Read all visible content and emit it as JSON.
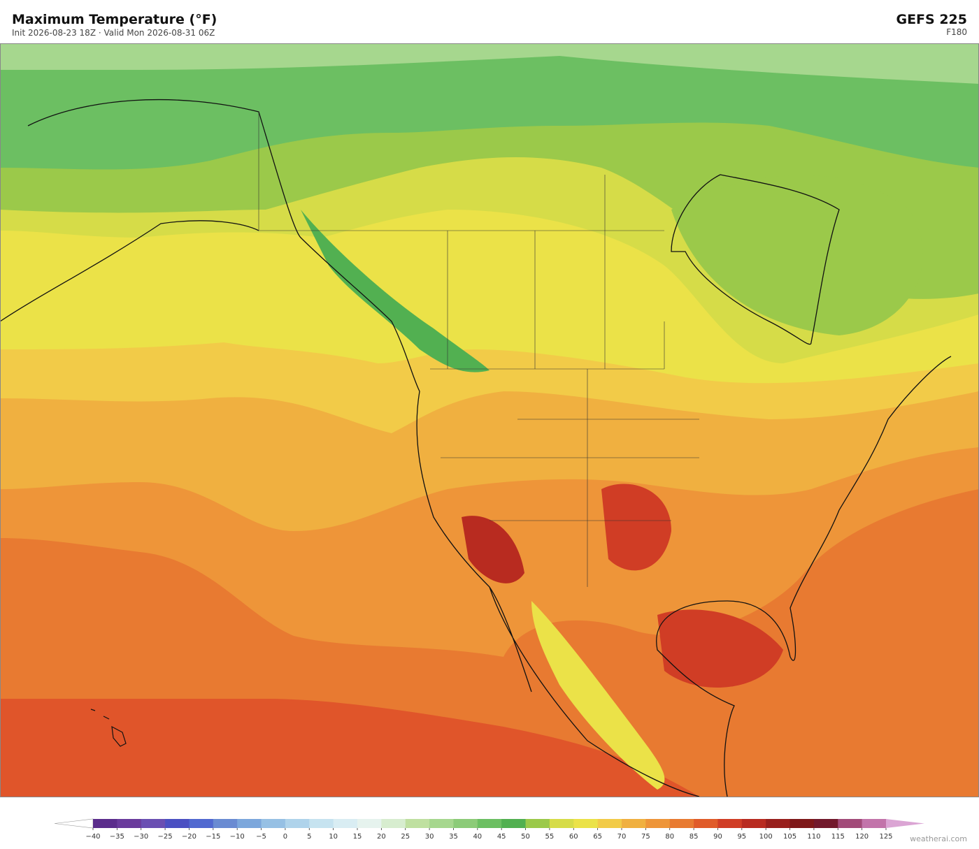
{
  "header": {
    "title": "Maximum Temperature  (°F)",
    "subtitle": "Init 2026-08-23 18Z   ·   Valid Mon 2026-08-31 06Z",
    "model": "GEFS  225",
    "forecast_hour": "F180"
  },
  "colorbar": {
    "ticks": [
      {
        "value": -40,
        "label": "−40"
      },
      {
        "value": -35,
        "label": "−35"
      },
      {
        "value": -30,
        "label": "−30"
      },
      {
        "value": -25,
        "label": "−25"
      },
      {
        "value": -20,
        "label": "−20"
      },
      {
        "value": -15,
        "label": "−15"
      },
      {
        "value": -10,
        "label": "−10"
      },
      {
        "value": -5,
        "label": "−5"
      },
      0,
      5,
      10,
      15,
      20,
      25,
      30,
      35,
      40,
      45,
      50,
      55,
      60,
      65,
      70,
      75,
      80,
      85,
      90,
      95,
      100,
      105,
      110,
      115,
      120,
      125
    ],
    "colors": [
      "#5b2d8c",
      "#6a3b9c",
      "#6a4fb2",
      "#4b50c2",
      "#5169d0",
      "#6a8bd2",
      "#7ca7dc",
      "#96c0e4",
      "#afd3eb",
      "#c6e3f0",
      "#d9edf3",
      "#e6f3ee",
      "#d7edcf",
      "#bfe0a0",
      "#a6d78e",
      "#8ccb78",
      "#6cbf62",
      "#52b051",
      "#9bc94a",
      "#d6dc48",
      "#ebe248",
      "#f2cb48",
      "#f0b040",
      "#ee9539",
      "#e87a31",
      "#e05b29",
      "#d03d25",
      "#b82b20",
      "#981f1c",
      "#7e1819",
      "#72192c",
      "#a24b79",
      "#c274aa"
    ],
    "under_color": "#ffffff",
    "over_color": "#dba5d4"
  },
  "footer": {
    "credit": "weatherai.com"
  }
}
